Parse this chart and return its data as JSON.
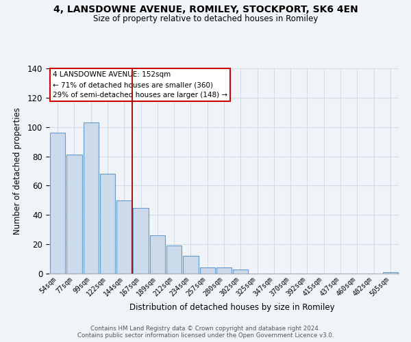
{
  "title1": "4, LANSDOWNE AVENUE, ROMILEY, STOCKPORT, SK6 4EN",
  "title2": "Size of property relative to detached houses in Romiley",
  "xlabel": "Distribution of detached houses by size in Romiley",
  "ylabel": "Number of detached properties",
  "bar_labels": [
    "54sqm",
    "77sqm",
    "99sqm",
    "122sqm",
    "144sqm",
    "167sqm",
    "189sqm",
    "212sqm",
    "234sqm",
    "257sqm",
    "280sqm",
    "302sqm",
    "325sqm",
    "347sqm",
    "370sqm",
    "392sqm",
    "415sqm",
    "437sqm",
    "460sqm",
    "482sqm",
    "505sqm"
  ],
  "bar_values": [
    96,
    81,
    103,
    68,
    50,
    45,
    26,
    19,
    12,
    4,
    4,
    3,
    0,
    0,
    0,
    0,
    0,
    0,
    0,
    0,
    1
  ],
  "bar_color": "#ccdaea",
  "bar_edge_color": "#6699cc",
  "vline_x_index": 5,
  "vline_color": "#990000",
  "annotation_title": "4 LANSDOWNE AVENUE: 152sqm",
  "annotation_line1": "← 71% of detached houses are smaller (360)",
  "annotation_line2": "29% of semi-detached houses are larger (148) →",
  "annotation_box_facecolor": "#ffffff",
  "annotation_box_edgecolor": "#cc0000",
  "ylim": [
    0,
    140
  ],
  "yticks": [
    0,
    20,
    40,
    60,
    80,
    100,
    120,
    140
  ],
  "footer1": "Contains HM Land Registry data © Crown copyright and database right 2024.",
  "footer2": "Contains public sector information licensed under the Open Government Licence v3.0.",
  "background_color": "#f0f4f8",
  "grid_color": "#d0dce8"
}
